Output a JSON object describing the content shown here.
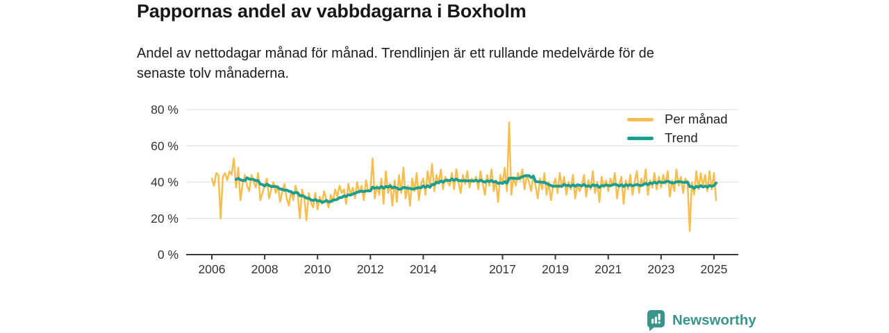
{
  "header": {
    "title": "Pappornas andel av vabbdagarna i Boxholm",
    "subtitle_line1": "Andel av nettodagar månad för månad. Trendlinjen är ett rullande medelvärde för de",
    "subtitle_line2": "senaste tolv månaderna."
  },
  "footer": {
    "brand": "Newsworthy",
    "logo_icon": "bar-chart-speech-bubble-icon"
  },
  "colors": {
    "per_manad": "#F6BE4E",
    "trend": "#1B9E90",
    "brand": "#3A948B",
    "axis": "#3A3A3A",
    "grid": "#E2E2E2",
    "tick_text": "#333333"
  },
  "chart_data": {
    "type": "line",
    "title": "Pappornas andel av vabbdagarna i Boxholm",
    "unit": "%",
    "x_monthly_start": "2006-01",
    "x_monthly_end": "2025-02",
    "legend_position": "top-right",
    "grid": "horizontal-only",
    "axes": {
      "y": {
        "range": [
          0,
          80
        ],
        "ticks": [
          {
            "label": "80 %",
            "value": 80
          },
          {
            "label": "60 %",
            "value": 60
          },
          {
            "label": "40 %",
            "value": 40
          },
          {
            "label": "20 %",
            "value": 20
          },
          {
            "label": "0 %",
            "value": 0
          }
        ]
      },
      "x": {
        "ticks": [
          {
            "label": "2006",
            "year": 2006
          },
          {
            "label": "2008",
            "year": 2008
          },
          {
            "label": "2010",
            "year": 2010
          },
          {
            "label": "2012",
            "year": 2012
          },
          {
            "label": "2014",
            "year": 2014
          },
          {
            "label": "2017",
            "year": 2017
          },
          {
            "label": "2019",
            "year": 2019
          },
          {
            "label": "2021",
            "year": 2021
          },
          {
            "label": "2023",
            "year": 2023
          },
          {
            "label": "2025",
            "year": 2025
          }
        ]
      }
    },
    "series": [
      {
        "name": "Per månad",
        "color_key": "per_manad",
        "values": [
          42,
          38,
          45,
          44,
          20,
          43,
          45,
          41,
          46,
          44,
          53,
          37,
          48,
          30,
          39,
          44,
          38,
          35,
          44,
          40,
          37,
          45,
          30,
          34,
          38,
          42,
          31,
          36,
          40,
          34,
          38,
          29,
          35,
          39,
          31,
          27,
          35,
          30,
          38,
          33,
          20,
          36,
          31,
          19,
          34,
          29,
          26,
          34,
          25,
          32,
          28,
          35,
          30,
          26,
          33,
          29,
          36,
          32,
          38,
          34,
          36,
          28,
          39,
          33,
          37,
          31,
          40,
          34,
          38,
          30,
          41,
          35,
          36,
          53,
          31,
          38,
          33,
          42,
          28,
          46,
          34,
          39,
          27,
          41,
          29,
          44,
          34,
          48,
          31,
          38,
          27,
          42,
          35,
          45,
          30,
          39,
          42,
          33,
          46,
          38,
          50,
          35,
          44,
          39,
          47,
          36,
          43,
          40,
          38,
          45,
          36,
          47,
          40,
          34,
          44,
          39,
          46,
          37,
          42,
          40,
          43,
          36,
          46,
          39,
          33,
          44,
          38,
          47,
          35,
          41,
          29,
          44,
          39,
          48,
          35,
          73,
          33,
          43,
          38,
          45,
          41,
          47,
          36,
          44,
          40,
          35,
          44,
          38,
          31,
          42,
          36,
          45,
          33,
          40,
          30,
          38,
          42,
          34,
          45,
          37,
          43,
          33,
          40,
          36,
          44,
          31,
          39,
          35,
          38,
          44,
          32,
          41,
          36,
          46,
          34,
          40,
          29,
          43,
          37,
          41,
          35,
          42,
          38,
          45,
          31,
          39,
          43,
          28,
          41,
          36,
          44,
          33,
          40,
          46,
          34,
          42,
          38,
          47,
          33,
          41,
          37,
          45,
          36,
          43,
          37,
          44,
          39,
          46,
          32,
          41,
          35,
          47,
          38,
          43,
          34,
          42,
          40,
          13,
          40,
          33,
          46,
          36,
          45,
          38,
          44,
          35,
          46,
          36,
          45,
          30
        ]
      },
      {
        "name": "Trend",
        "color_key": "trend",
        "derived": "rolling_mean_12_months_of_per_manad"
      }
    ]
  }
}
